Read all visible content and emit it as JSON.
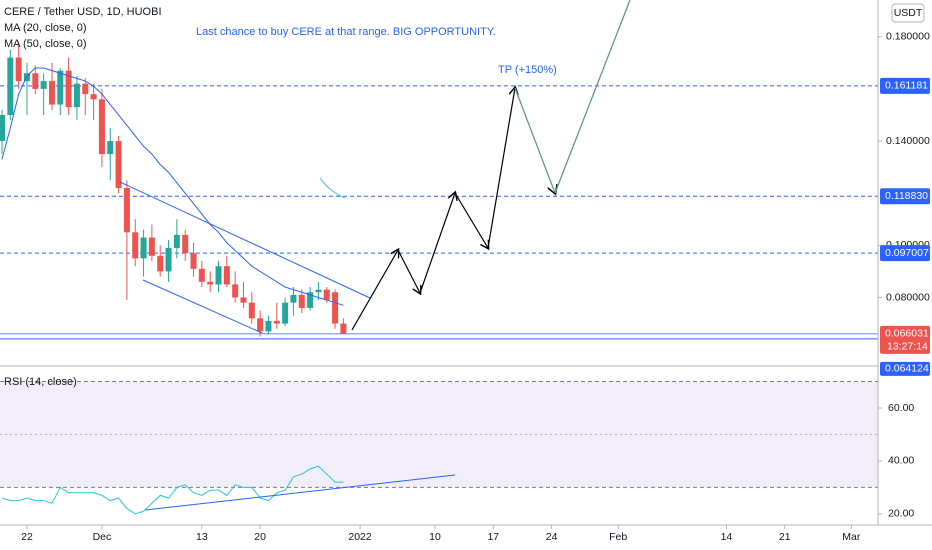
{
  "chart_data": [
    {
      "type": "candlestick",
      "title": "CERE / Tether USD, 1D, HUOBI",
      "ma50_label": "MA (50, close, 0)",
      "currency": "USDT",
      "annotation": "Last chance to buy CERE at that range. BIG OPPORTUNITY.",
      "target_label": "TP (+150%)",
      "up_color": "#26a69a",
      "down_color": "#ef5350",
      "x": [
        -3,
        -2,
        -1,
        0,
        1,
        2,
        3,
        4,
        5,
        6,
        7,
        8,
        9,
        10,
        11,
        12,
        13,
        14,
        15,
        16,
        17,
        18,
        19,
        20,
        21,
        22,
        23,
        24,
        25,
        26,
        27,
        28,
        29,
        30,
        31,
        32,
        33,
        34,
        35,
        36,
        37,
        38
      ],
      "open": [
        0.14,
        0.15,
        0.172,
        0.163,
        0.166,
        0.16,
        0.163,
        0.154,
        0.167,
        0.153,
        0.162,
        0.158,
        0.156,
        0.135,
        0.14,
        0.122,
        0.105,
        0.095,
        0.103,
        0.096,
        0.09,
        0.099,
        0.104,
        0.097,
        0.091,
        0.086,
        0.085,
        0.092,
        0.085,
        0.08,
        0.078,
        0.072,
        0.067,
        0.071,
        0.07,
        0.078,
        0.081,
        0.076,
        0.082,
        0.083,
        0.082,
        0.07
      ],
      "high": [
        0.152,
        0.175,
        0.178,
        0.17,
        0.169,
        0.166,
        0.17,
        0.168,
        0.172,
        0.165,
        0.164,
        0.162,
        0.16,
        0.145,
        0.142,
        0.125,
        0.11,
        0.106,
        0.108,
        0.1,
        0.102,
        0.11,
        0.106,
        0.101,
        0.094,
        0.09,
        0.094,
        0.096,
        0.09,
        0.086,
        0.082,
        0.075,
        0.073,
        0.078,
        0.08,
        0.084,
        0.083,
        0.084,
        0.086,
        0.084,
        0.083,
        0.072
      ],
      "low": [
        0.135,
        0.148,
        0.16,
        0.15,
        0.158,
        0.15,
        0.152,
        0.15,
        0.15,
        0.148,
        0.15,
        0.148,
        0.13,
        0.125,
        0.12,
        0.079,
        0.092,
        0.088,
        0.094,
        0.088,
        0.086,
        0.095,
        0.094,
        0.088,
        0.084,
        0.082,
        0.082,
        0.084,
        0.078,
        0.076,
        0.07,
        0.065,
        0.066,
        0.068,
        0.069,
        0.073,
        0.074,
        0.075,
        0.079,
        0.078,
        0.068,
        0.066
      ],
      "close": [
        0.15,
        0.172,
        0.163,
        0.166,
        0.16,
        0.163,
        0.154,
        0.167,
        0.153,
        0.162,
        0.158,
        0.156,
        0.135,
        0.14,
        0.122,
        0.105,
        0.095,
        0.103,
        0.096,
        0.09,
        0.099,
        0.104,
        0.097,
        0.091,
        0.086,
        0.085,
        0.092,
        0.085,
        0.08,
        0.078,
        0.072,
        0.067,
        0.071,
        0.07,
        0.078,
        0.081,
        0.076,
        0.082,
        0.083,
        0.079,
        0.07,
        0.066031
      ],
      "series": [
        {
          "name": "MA (20, close, 0)",
          "color": "#2962ff",
          "values": [
            0.133,
            0.145,
            0.158,
            0.165,
            0.168,
            0.168,
            0.167,
            0.166,
            0.165,
            0.164,
            0.163,
            0.161,
            0.158,
            0.154,
            0.15,
            0.146,
            0.142,
            0.138,
            0.135,
            0.131,
            0.128,
            0.124,
            0.12,
            0.116,
            0.112,
            0.108,
            0.105,
            0.101,
            0.098,
            0.095,
            0.092,
            0.09,
            0.088,
            0.086,
            0.084,
            0.083,
            0.082,
            0.081,
            0.08,
            0.079,
            0.078,
            0.077
          ]
        }
      ],
      "xlim": [
        -3.24,
        102.2
      ],
      "xticks": [
        {
          "value": 0,
          "label": "22"
        },
        {
          "value": 9,
          "label": "Dec"
        },
        {
          "value": 21,
          "label": "13"
        },
        {
          "value": 28,
          "label": "20"
        },
        {
          "value": 40,
          "label": "2022"
        },
        {
          "value": 49,
          "label": "10"
        },
        {
          "value": 56,
          "label": "17"
        },
        {
          "value": 63,
          "label": "24"
        },
        {
          "value": 71,
          "label": "Feb"
        },
        {
          "value": 84,
          "label": "14"
        },
        {
          "value": 91,
          "label": "21"
        },
        {
          "value": 99,
          "label": "Mar"
        }
      ],
      "ylim": [
        0.0541,
        0.1941
      ],
      "yticks": [
        {
          "value": 0.18,
          "label": "0.180000"
        },
        {
          "value": 0.14,
          "label": "0.140000"
        },
        {
          "value": 0.1,
          "label": "0.100000"
        },
        {
          "value": 0.08,
          "label": "0.080000"
        }
      ],
      "levels": [
        {
          "value": 0.161181,
          "label": "0.161181"
        },
        {
          "value": 0.11883,
          "label": "0.118830"
        },
        {
          "value": 0.097007,
          "label": "0.097007"
        }
      ],
      "last_price": {
        "value": 0.066031,
        "label": "0.066031",
        "countdown": "13:27:14"
      },
      "support": {
        "value": 0.064124,
        "label": "0.064124"
      }
    },
    {
      "type": "line",
      "title": "RSI (14, close)",
      "color": "#26c6da",
      "values": [
        26,
        25,
        25,
        26,
        25,
        25,
        24,
        30,
        28,
        28,
        28,
        28,
        27,
        25,
        26,
        22,
        20,
        21,
        24,
        27,
        26,
        30,
        31,
        28,
        27,
        29,
        29,
        27,
        31,
        30,
        30,
        26,
        25,
        28,
        29,
        34,
        35,
        37,
        38,
        35,
        32,
        32
      ],
      "ylim": [
        15.8,
        75.5
      ],
      "yticks": [
        {
          "value": 60,
          "label": "60.00"
        },
        {
          "value": 40,
          "label": "40.00"
        },
        {
          "value": 20,
          "label": "20.00"
        }
      ],
      "band": [
        30,
        70
      ],
      "midline": 50
    }
  ]
}
